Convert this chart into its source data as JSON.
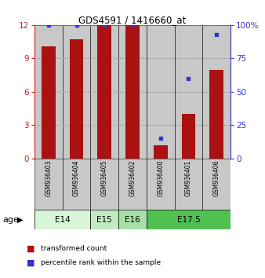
{
  "title": "GDS4591 / 1416660_at",
  "samples": [
    "GSM936403",
    "GSM936404",
    "GSM936405",
    "GSM936402",
    "GSM936400",
    "GSM936401",
    "GSM936406"
  ],
  "red_bars": [
    10.1,
    10.7,
    12.0,
    12.0,
    1.2,
    4.0,
    8.0
  ],
  "blue_dots_pct": [
    100,
    100,
    100,
    100,
    15,
    60,
    93
  ],
  "age_groups": [
    {
      "label": "E14",
      "start": 0,
      "end": 1,
      "color": "#e0f0e0"
    },
    {
      "label": "E15",
      "start": 2,
      "end": 2,
      "color": "#c8e8c8"
    },
    {
      "label": "E16",
      "start": 3,
      "end": 3,
      "color": "#b0dab0"
    },
    {
      "label": "E17.5",
      "start": 4,
      "end": 6,
      "color": "#50c050"
    }
  ],
  "ylim_left": [
    0,
    12
  ],
  "ylim_right": [
    0,
    100
  ],
  "yticks_left": [
    0,
    3,
    6,
    9,
    12
  ],
  "yticks_right": [
    0,
    25,
    50,
    75,
    100
  ],
  "bar_color": "#aa1111",
  "dot_color": "#3333cc",
  "bar_width": 0.5,
  "left_tick_color": "#cc2222",
  "right_tick_color": "#3333cc",
  "legend_red": "transformed count",
  "legend_blue": "percentile rank within the sample",
  "age_label": "age",
  "sample_box_color": "#c8c8c8",
  "grid_color": "#888888"
}
